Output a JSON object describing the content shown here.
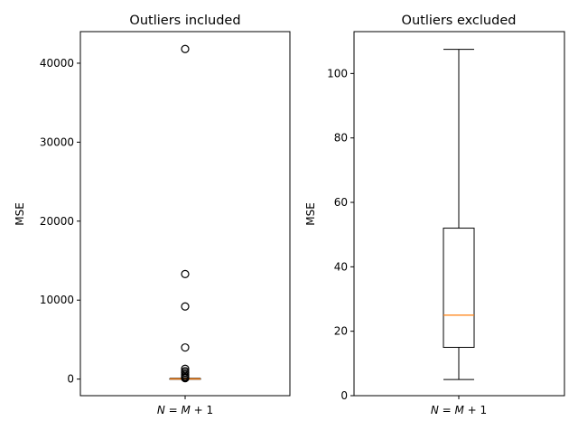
{
  "chart_data": [
    {
      "type": "boxplot",
      "title": "Outliers included",
      "ylabel": "MSE",
      "xlabel_tick": "N = M + 1",
      "ylim": [
        -2100,
        44000
      ],
      "yticks": [
        0,
        10000,
        20000,
        30000,
        40000
      ],
      "ytick_labels": [
        "0",
        "10000",
        "20000",
        "30000",
        "40000"
      ],
      "box": {
        "whisker_low": 5,
        "q1": 15,
        "median": 25,
        "q3": 52,
        "whisker_high": 107
      },
      "outliers": [
        41800,
        13300,
        9200,
        4000,
        1300,
        1000,
        800,
        600,
        400,
        250,
        150,
        120
      ],
      "colors": {
        "box": "#000000",
        "median": "#ff7f0e"
      }
    },
    {
      "type": "boxplot",
      "title": "Outliers excluded",
      "ylabel": "MSE",
      "xlabel_tick": "N = M + 1",
      "ylim": [
        0,
        113
      ],
      "yticks": [
        0,
        20,
        40,
        60,
        80,
        100
      ],
      "ytick_labels": [
        "0",
        "20",
        "40",
        "60",
        "80",
        "100"
      ],
      "box": {
        "whisker_low": 5,
        "q1": 15,
        "median": 25,
        "q3": 52,
        "whisker_high": 107.5
      },
      "outliers": [],
      "colors": {
        "box": "#000000",
        "median": "#ff7f0e"
      }
    }
  ]
}
